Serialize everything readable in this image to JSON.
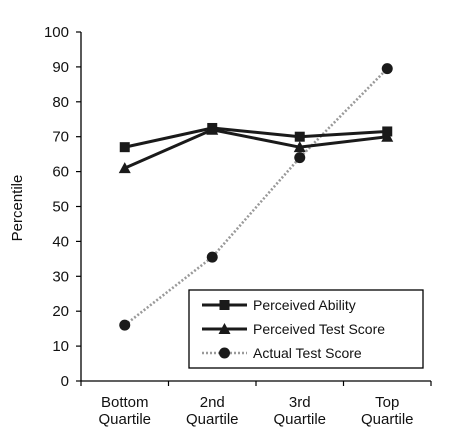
{
  "chart_data": {
    "type": "line",
    "title": "",
    "xlabel": "",
    "ylabel": "Percentile",
    "ylim": [
      0,
      100
    ],
    "yticks": [
      "0",
      "10",
      "20",
      "30",
      "40",
      "50",
      "60",
      "70",
      "80",
      "90",
      "100"
    ],
    "categories": [
      [
        "Bottom",
        "Quartile"
      ],
      [
        "2nd",
        "Quartile"
      ],
      [
        "3rd",
        "Quartile"
      ],
      [
        "Top",
        "Quartile"
      ]
    ],
    "grid": false,
    "legend_position": "bottom-right",
    "series": [
      {
        "name": "Perceived Ability",
        "values": [
          67,
          72.5,
          70,
          71.5
        ],
        "marker": "square",
        "color": "#1a1a1a"
      },
      {
        "name": "Perceived Test Score",
        "values": [
          61,
          72,
          67,
          70
        ],
        "marker": "triangle",
        "color": "#1a1a1a"
      },
      {
        "name": "Actual Test Score",
        "values": [
          16,
          35.5,
          64,
          89.5
        ],
        "marker": "circle",
        "color": "#9a9a9a",
        "dashed": true
      }
    ]
  }
}
